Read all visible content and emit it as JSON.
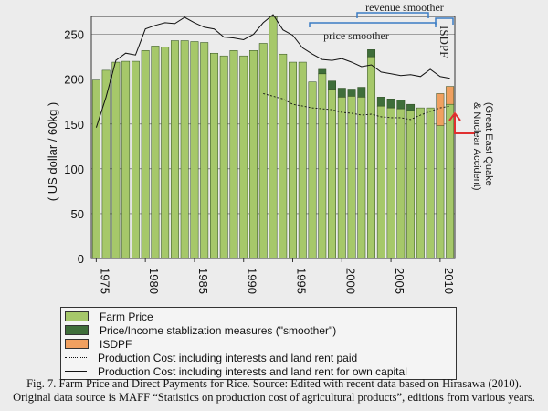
{
  "chart_data": {
    "type": "bar",
    "ylabel": "( US dollar / 60kg )",
    "ylim": [
      0,
      270
    ],
    "yticks": [
      0,
      50,
      100,
      150,
      200,
      250
    ],
    "years": [
      1975,
      1976,
      1977,
      1978,
      1979,
      1980,
      1981,
      1982,
      1983,
      1984,
      1985,
      1986,
      1987,
      1988,
      1989,
      1990,
      1991,
      1992,
      1993,
      1994,
      1995,
      1996,
      1997,
      1998,
      1999,
      2000,
      2001,
      2002,
      2003,
      2004,
      2005,
      2006,
      2007,
      2008,
      2009,
      2010,
      2011
    ],
    "xtick_labels": [
      "1975",
      "1980",
      "1985",
      "1990",
      "1995",
      "2000",
      "2005",
      "2010"
    ],
    "grid": true,
    "series": [
      {
        "name": "Farm Price",
        "color": "#a6c86a",
        "values": [
          199,
          210,
          219,
          220,
          220,
          232,
          237,
          236,
          243,
          243,
          242,
          241,
          229,
          226,
          232,
          226,
          232,
          240,
          270,
          228,
          219,
          219,
          197,
          206,
          189,
          180,
          181,
          180,
          225,
          170,
          168,
          167,
          165,
          168,
          168,
          148,
          172
        ]
      },
      {
        "name": "Price/Income stablization measures (\"smoother\")",
        "color": "#3f6e3a",
        "values": [
          0,
          0,
          0,
          0,
          0,
          0,
          0,
          0,
          0,
          0,
          0,
          0,
          0,
          0,
          0,
          0,
          0,
          0,
          0,
          0,
          0,
          0,
          0,
          5,
          9,
          10,
          8,
          11,
          8,
          10,
          10,
          10,
          7,
          0,
          0,
          0,
          0
        ]
      },
      {
        "name": "ISDPF",
        "color": "#f0a060",
        "values": [
          0,
          0,
          0,
          0,
          0,
          0,
          0,
          0,
          0,
          0,
          0,
          0,
          0,
          0,
          0,
          0,
          0,
          0,
          0,
          0,
          0,
          0,
          0,
          0,
          0,
          0,
          0,
          0,
          0,
          0,
          0,
          0,
          0,
          0,
          0,
          36,
          20
        ]
      },
      {
        "name": "Production Cost including interests and land rent paid",
        "style": "dotted",
        "values": [
          null,
          null,
          null,
          null,
          null,
          null,
          null,
          null,
          null,
          null,
          null,
          null,
          null,
          null,
          null,
          null,
          null,
          184,
          181,
          178,
          172,
          170,
          168,
          167,
          166,
          163,
          162,
          160,
          161,
          158,
          157,
          157,
          155,
          160,
          164,
          168,
          170
        ]
      },
      {
        "name": "Production Cost including interests and land rent for own capital",
        "style": "solid",
        "values": [
          146,
          180,
          221,
          229,
          227,
          256,
          260,
          263,
          262,
          269,
          263,
          258,
          256,
          247,
          246,
          244,
          250,
          263,
          272,
          255,
          249,
          235,
          228,
          222,
          221,
          223,
          219,
          214,
          216,
          208,
          206,
          204,
          205,
          203,
          211,
          203,
          201
        ]
      }
    ],
    "annotations": {
      "price_smoother": "price smoother",
      "revenue_smoother": "revenue smoother",
      "isdpf": "ISDPF",
      "quake_line1": "(Great East Quake",
      "quake_line2": "& Nuclear Accident)"
    }
  },
  "legend": [
    {
      "label": "Farm Price",
      "kind": "box",
      "color": "#a6c86a"
    },
    {
      "label": "Price/Income stablization measures (\"smoother\")",
      "kind": "box",
      "color": "#3f6e3a"
    },
    {
      "label": "ISDPF",
      "kind": "box",
      "color": "#f0a060"
    },
    {
      "label": "Production Cost including interests and land rent paid",
      "kind": "dotted"
    },
    {
      "label": "Production Cost including interests and land rent for own capital",
      "kind": "solid"
    }
  ],
  "caption": {
    "line1": "Fig. 7. Farm Price and Direct Payments for Rice. Source: Edited with recent data based on Hirasawa (2010).",
    "line2": "Original data source is MAFF “Statistics on production cost of agricultural products”, editions from various years."
  }
}
